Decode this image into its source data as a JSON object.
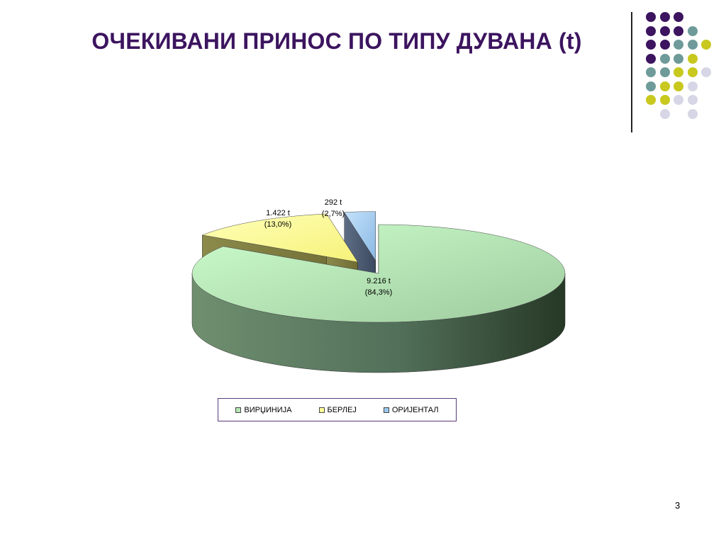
{
  "slide": {
    "title": "ОЧЕКИВАНИ ПРИНОС ПО ТИПУ ДУВАНА (t)",
    "page_number": "3"
  },
  "decoration": {
    "dot_colors": {
      "purple": "#3c145f",
      "teal": "#6e9b99",
      "yellow": "#c8c81e",
      "lavender": "#d6d6e6"
    },
    "dot_rows": [
      [
        "purple",
        "purple",
        "purple",
        null,
        null
      ],
      [
        "purple",
        "purple",
        "purple",
        "teal",
        null
      ],
      [
        "purple",
        "purple",
        "teal",
        "teal",
        "yellow"
      ],
      [
        "purple",
        "teal",
        "teal",
        "yellow",
        null
      ],
      [
        "teal",
        "teal",
        "yellow",
        "yellow",
        "lavender"
      ],
      [
        "teal",
        "yellow",
        "yellow",
        "lavender",
        null
      ],
      [
        "yellow",
        "yellow",
        "lavender",
        "lavender",
        null
      ],
      [
        null,
        "lavender",
        null,
        "lavender",
        null
      ]
    ]
  },
  "chart_data": {
    "type": "pie",
    "title": "",
    "categories": [
      "ВИРЏИНИЈА",
      "БЕРЛЕЈ",
      "ОРИЈЕНТАЛ"
    ],
    "values": [
      9216,
      1422,
      292
    ],
    "unit": "t",
    "percentages": [
      "84,3%",
      "13,0%",
      "2,7%"
    ],
    "data_labels": [
      {
        "value_text": "9.216 t",
        "percent_text": "(84,3%)"
      },
      {
        "value_text": "1.422 t",
        "percent_text": "(13,0%)"
      },
      {
        "value_text": "292 t",
        "percent_text": "(2,7%)"
      }
    ],
    "colors": [
      "#b4e6b4",
      "#ffff9a",
      "#9cc8ee"
    ],
    "exploded": true,
    "three_d": true,
    "legend": {
      "position": "bottom",
      "items": [
        "ВИРЏИНИЈА",
        "БЕРЛЕЈ",
        "ОРИЈЕНТАЛ"
      ]
    }
  }
}
